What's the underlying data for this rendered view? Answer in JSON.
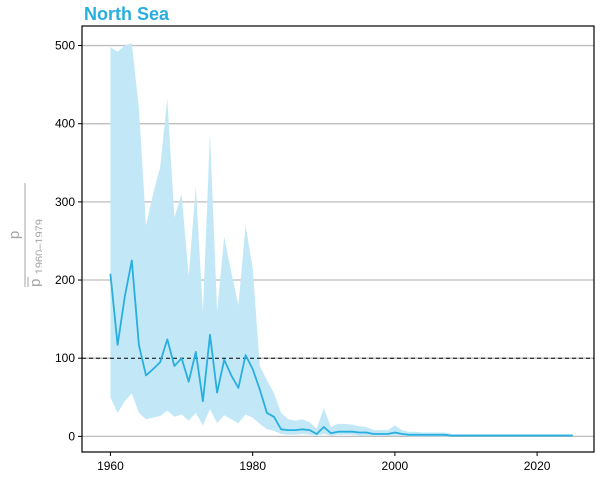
{
  "chart_data": {
    "type": "area",
    "title": "North Sea",
    "xlabel": "",
    "ylabel": {
      "main": "p",
      "sub": "p",
      "subscript": "1960–1979"
    },
    "xlim": [
      1956,
      2028
    ],
    "ylim": [
      -20,
      525
    ],
    "xticks": [
      1960,
      1980,
      2000,
      2020
    ],
    "yticks": [
      0,
      100,
      200,
      300,
      400,
      500
    ],
    "grid": {
      "horizontal_major": true,
      "vertical": false
    },
    "reference_line": {
      "y": 100,
      "style": "dashed"
    },
    "colors": {
      "line": "#29aee0",
      "ribbon": "#c2e8f7",
      "title": "#29aee0",
      "grid": "#bebebe",
      "ylabel": "#a6a6a6"
    },
    "series": [
      {
        "x": [
          1960,
          1961,
          1962,
          1963,
          1964,
          1965,
          1966,
          1967,
          1968,
          1969,
          1970,
          1971,
          1972,
          1973,
          1974,
          1975,
          1976,
          1977,
          1978,
          1979,
          1980,
          1981,
          1982,
          1983,
          1984,
          1985,
          1986,
          1987,
          1988,
          1989,
          1990,
          1991,
          1992,
          1993,
          1994,
          1995,
          1996,
          1997,
          1998,
          1999,
          2000,
          2001,
          2002,
          2003,
          2004,
          2005,
          2006,
          2007,
          2008,
          2009,
          2010,
          2011,
          2012,
          2013,
          2014,
          2015,
          2016,
          2017,
          2018,
          2019,
          2020,
          2021,
          2022,
          2023,
          2024,
          2025
        ],
        "values": [
          208,
          117,
          178,
          225,
          117,
          78,
          86,
          95,
          124,
          90,
          100,
          70,
          108,
          45,
          130,
          56,
          98,
          78,
          62,
          104,
          86,
          60,
          30,
          25,
          9,
          8,
          8,
          9,
          8,
          3,
          12,
          4,
          6,
          6,
          6,
          5,
          5,
          3,
          3,
          3,
          5,
          3,
          2,
          2,
          2,
          2,
          2,
          2,
          1,
          1,
          1,
          1,
          1,
          1,
          1,
          1,
          1,
          1,
          1,
          1,
          1,
          1,
          1,
          1,
          1,
          1
        ],
        "lower": [
          50,
          30,
          45,
          55,
          30,
          22,
          24,
          26,
          33,
          25,
          28,
          20,
          30,
          14,
          35,
          17,
          27,
          22,
          17,
          28,
          24,
          16,
          9,
          7,
          3,
          2,
          2,
          3,
          2,
          1,
          3,
          1,
          2,
          2,
          2,
          1,
          1,
          1,
          1,
          1,
          1,
          1,
          0,
          0,
          0,
          0,
          0,
          0,
          0,
          0,
          0,
          0,
          0,
          0,
          0,
          0,
          0,
          0,
          0,
          0,
          0,
          0,
          0,
          0,
          0,
          0
        ],
        "upper": [
          498,
          492,
          500,
          503,
          420,
          270,
          310,
          345,
          432,
          280,
          310,
          205,
          320,
          160,
          388,
          160,
          255,
          210,
          168,
          270,
          215,
          90,
          72,
          55,
          30,
          22,
          20,
          22,
          18,
          10,
          36,
          12,
          16,
          16,
          15,
          13,
          12,
          8,
          8,
          8,
          14,
          8,
          6,
          6,
          5,
          5,
          5,
          5,
          3,
          3,
          3,
          3,
          3,
          3,
          3,
          3,
          3,
          3,
          3,
          3,
          3,
          3,
          3,
          3,
          3,
          3
        ]
      }
    ]
  }
}
